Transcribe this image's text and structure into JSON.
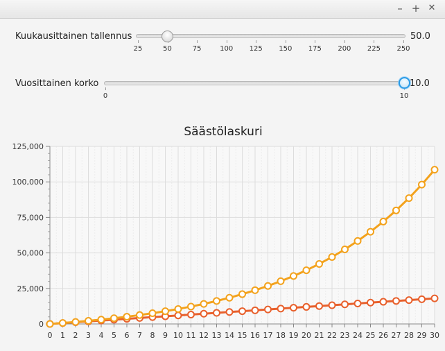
{
  "window": {
    "buttons": [
      {
        "name": "minimize-button",
        "glyph": "–"
      },
      {
        "name": "maximize-button",
        "glyph": "+"
      },
      {
        "name": "close-button",
        "glyph": "✕"
      }
    ]
  },
  "sliders": {
    "monthly": {
      "label": "Kuukausittainen tallennus",
      "value_text": "50.0",
      "value": 50,
      "min": 25,
      "max": 250,
      "ticks": [
        "25",
        "50",
        "75",
        "100",
        "125",
        "150",
        "175",
        "200",
        "225",
        "250"
      ]
    },
    "yearly": {
      "label": "Vuosittainen korko",
      "value_text": "10.0",
      "value": 10,
      "min": 0,
      "max": 10,
      "ticks": [
        "0",
        "10"
      ]
    }
  },
  "chart_data": {
    "type": "line",
    "title": "Säästölaskuri",
    "xlabel": "",
    "ylabel": "",
    "xlim": [
      0,
      30
    ],
    "ylim": [
      0,
      125000
    ],
    "x": [
      0,
      1,
      2,
      3,
      4,
      5,
      6,
      7,
      8,
      9,
      10,
      11,
      12,
      13,
      14,
      15,
      16,
      17,
      18,
      19,
      20,
      21,
      22,
      23,
      24,
      25,
      26,
      27,
      28,
      29,
      30
    ],
    "x_tick_labels": [
      "0",
      "1",
      "2",
      "3",
      "4",
      "5",
      "6",
      "7",
      "8",
      "9",
      "10",
      "11",
      "12",
      "13",
      "14",
      "15",
      "16",
      "17",
      "18",
      "19",
      "20",
      "21",
      "22",
      "23",
      "24",
      "25",
      "26",
      "27",
      "28",
      "29",
      "30"
    ],
    "y_ticks": [
      0,
      25000,
      50000,
      75000,
      100000,
      125000
    ],
    "y_tick_labels": [
      "0",
      "25,000",
      "50,000",
      "75,000",
      "100,000",
      "125,000"
    ],
    "grid": true,
    "legend": "none",
    "series": [
      {
        "color": "#e8602c",
        "values": [
          0,
          600,
          1200,
          1800,
          2400,
          3000,
          3600,
          4200,
          4800,
          5400,
          6000,
          6600,
          7200,
          7800,
          8400,
          9000,
          9600,
          10200,
          10800,
          11400,
          12000,
          12600,
          13200,
          13800,
          14400,
          15000,
          15600,
          16200,
          16800,
          17400,
          18000
        ]
      },
      {
        "color": "#f3a21c",
        "values": [
          0,
          660,
          1386,
          2185,
          3063,
          4029,
          5092,
          6261,
          7547,
          8962,
          10518,
          12230,
          14113,
          16184,
          18462,
          20969,
          23726,
          26758,
          30094,
          33764,
          37800,
          42240,
          47124,
          52496,
          58406,
          64906,
          72057,
          79923,
          88575,
          98092,
          108561
        ]
      }
    ]
  }
}
